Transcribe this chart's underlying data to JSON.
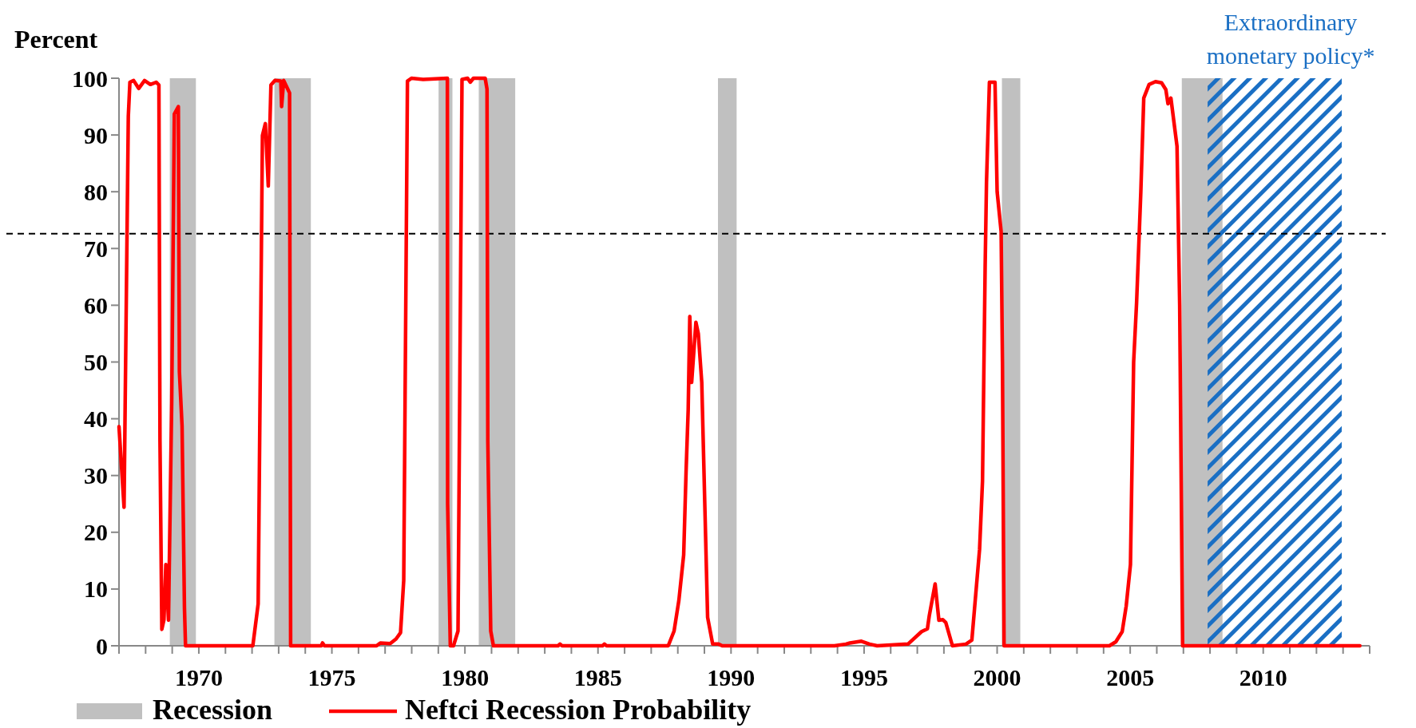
{
  "chart_data": {
    "type": "line",
    "ylabel": "Percent",
    "xlim": [
      1967,
      2014
    ],
    "xticks": [
      {
        "value": 1967,
        "label": null
      },
      {
        "value": 1968,
        "label": null
      },
      {
        "value": 1969,
        "label": null
      },
      1970,
      {
        "value": 1971,
        "label": null
      },
      {
        "value": 1972,
        "label": null
      },
      {
        "value": 1973,
        "label": null
      },
      {
        "value": 1974,
        "label": null
      },
      1975,
      {
        "value": 1976,
        "label": null
      },
      {
        "value": 1977,
        "label": null
      },
      {
        "value": 1978,
        "label": null
      },
      {
        "value": 1979,
        "label": null
      },
      1980,
      {
        "value": 1981,
        "label": null
      },
      {
        "value": 1982,
        "label": null
      },
      {
        "value": 1983,
        "label": null
      },
      {
        "value": 1984,
        "label": null
      },
      1985,
      {
        "value": 1986,
        "label": null
      },
      {
        "value": 1987,
        "label": null
      },
      {
        "value": 1988,
        "label": null
      },
      {
        "value": 1989,
        "label": null
      },
      1990,
      {
        "value": 1991,
        "label": null
      },
      {
        "value": 1992,
        "label": null
      },
      {
        "value": 1993,
        "label": null
      },
      {
        "value": 1994,
        "label": null
      },
      1995,
      {
        "value": 1996,
        "label": null
      },
      {
        "value": 1997,
        "label": null
      },
      {
        "value": 1998,
        "label": null
      },
      {
        "value": 1999,
        "label": null
      },
      2000,
      {
        "value": 2001,
        "label": null
      },
      {
        "value": 2002,
        "label": null
      },
      {
        "value": 2003,
        "label": null
      },
      {
        "value": 2004,
        "label": null
      },
      2005,
      {
        "value": 2006,
        "label": null
      },
      {
        "value": 2007,
        "label": null
      },
      {
        "value": 2008,
        "label": null
      },
      {
        "value": 2009,
        "label": null
      },
      2010,
      {
        "value": 2011,
        "label": null
      },
      {
        "value": 2012,
        "label": null
      },
      {
        "value": 2013,
        "label": null
      },
      {
        "value": 2014,
        "label": null
      }
    ],
    "ylim": [
      0,
      100
    ],
    "yticks": [
      0,
      10,
      20,
      30,
      40,
      50,
      60,
      70,
      80,
      90,
      100
    ],
    "grid": false,
    "legend": "bottom left",
    "marker": "none",
    "line_style": "solid",
    "series": [
      {
        "name": "Neftci Recession Probability",
        "color": "#ff0000",
        "x": [
          1967.0,
          1967.19,
          1967.35,
          1967.41,
          1967.55,
          1967.74,
          1967.96,
          1968.18,
          1968.4,
          1968.5,
          1968.54,
          1968.61,
          1968.69,
          1968.76,
          1968.86,
          1968.98,
          1969.08,
          1969.23,
          1969.27,
          1969.37,
          1969.46,
          1969.5,
          1972.03,
          1972.23,
          1972.39,
          1972.5,
          1972.61,
          1972.71,
          1972.86,
          1973.08,
          1973.11,
          1973.19,
          1973.34,
          1973.41,
          1973.45,
          1974.6,
          1974.65,
          1974.72,
          1976.68,
          1976.82,
          1977.19,
          1977.41,
          1977.58,
          1977.7,
          1977.84,
          1977.99,
          1978.43,
          1979.34,
          1979.35,
          1979.45,
          1979.57,
          1979.74,
          1979.89,
          1980.1,
          1980.2,
          1980.32,
          1980.76,
          1980.83,
          1980.86,
          1980.97,
          1981.07,
          1983.5,
          1983.57,
          1983.65,
          1985.17,
          1985.24,
          1985.32,
          1987.64,
          1987.86,
          1988.04,
          1988.22,
          1988.31,
          1988.39,
          1988.45,
          1988.52,
          1988.68,
          1988.77,
          1988.9,
          1989.12,
          1989.31,
          1989.53,
          1989.67,
          1993.89,
          1994.32,
          1994.47,
          1994.9,
          1995.2,
          1995.49,
          1996.65,
          1997.16,
          1997.38,
          1997.45,
          1997.67,
          1997.81,
          1997.96,
          1998.07,
          1998.32,
          1998.83,
          1999.05,
          1999.34,
          1999.45,
          1999.55,
          1999.6,
          1999.71,
          1999.92,
          2000.0,
          2000.15,
          2000.2,
          2000.26,
          2004.22,
          2004.46,
          2004.7,
          2004.85,
          2005.01,
          2005.13,
          2005.24,
          2005.4,
          2005.51,
          2005.71,
          2005.95,
          2006.18,
          2006.34,
          2006.42,
          2006.53,
          2006.76,
          2006.86,
          2006.97,
          2013.63
        ],
        "values": [
          38.6,
          24.4,
          93.3,
          99.3,
          99.6,
          98.2,
          99.6,
          98.9,
          99.3,
          98.8,
          36,
          2.9,
          4.6,
          14.3,
          4.5,
          42.8,
          93.7,
          95,
          48.3,
          38.7,
          6.7,
          0,
          0,
          7.4,
          89.9,
          92,
          81,
          98.8,
          99.6,
          99.5,
          95,
          99.6,
          98.1,
          97.4,
          0,
          0,
          0.5,
          0,
          0,
          0.5,
          0.4,
          1.2,
          2.3,
          11.5,
          99.5,
          100,
          99.8,
          100,
          25,
          0,
          0,
          2.6,
          99.8,
          100,
          99.3,
          100,
          100,
          98.1,
          36,
          2.6,
          0,
          0,
          0.3,
          0,
          0,
          0.3,
          0,
          0,
          2.6,
          8,
          16,
          30.6,
          41.6,
          58,
          46.4,
          57,
          55,
          46.4,
          5,
          0.3,
          0.3,
          0,
          0,
          0.3,
          0.5,
          0.8,
          0.3,
          0,
          0.3,
          2.5,
          3,
          5.3,
          10.9,
          4.5,
          4.6,
          4.1,
          0,
          0.3,
          1,
          17,
          29,
          67,
          81.6,
          99.3,
          99.3,
          80,
          73,
          50,
          0,
          0,
          0.7,
          2.5,
          7,
          14.3,
          50,
          60.4,
          80,
          96.5,
          98.9,
          99.4,
          99.2,
          98,
          95.5,
          96.5,
          88,
          60,
          0,
          0
        ]
      }
    ],
    "ref_lines": [
      {
        "axis": "y",
        "value": 72.6,
        "color": "#000000",
        "line_style": "dashed"
      }
    ],
    "bands": [
      {
        "axis": "x",
        "from": 1968.91,
        "to": 1969.89,
        "label": "Recession",
        "color": "#c0c0c0"
      },
      {
        "axis": "x",
        "from": 1972.84,
        "to": 1974.21,
        "color": "#c0c0c0"
      },
      {
        "axis": "x",
        "from": 1979.01,
        "to": 1979.53,
        "color": "#c0c0c0"
      },
      {
        "axis": "x",
        "from": 1980.52,
        "to": 1981.89,
        "color": "#c0c0c0"
      },
      {
        "axis": "x",
        "from": 1989.51,
        "to": 1990.21,
        "color": "#c0c0c0"
      },
      {
        "axis": "x",
        "from": 2000.18,
        "to": 2000.87,
        "color": "#c0c0c0"
      },
      {
        "axis": "x",
        "from": 2006.94,
        "to": 2008.47,
        "color": "#c0c0c0"
      },
      {
        "axis": "x",
        "from": 2007.91,
        "to": 2012.95,
        "label": "Extraordinary monetary policy*",
        "color": "#1a6fc4"
      }
    ]
  }
}
